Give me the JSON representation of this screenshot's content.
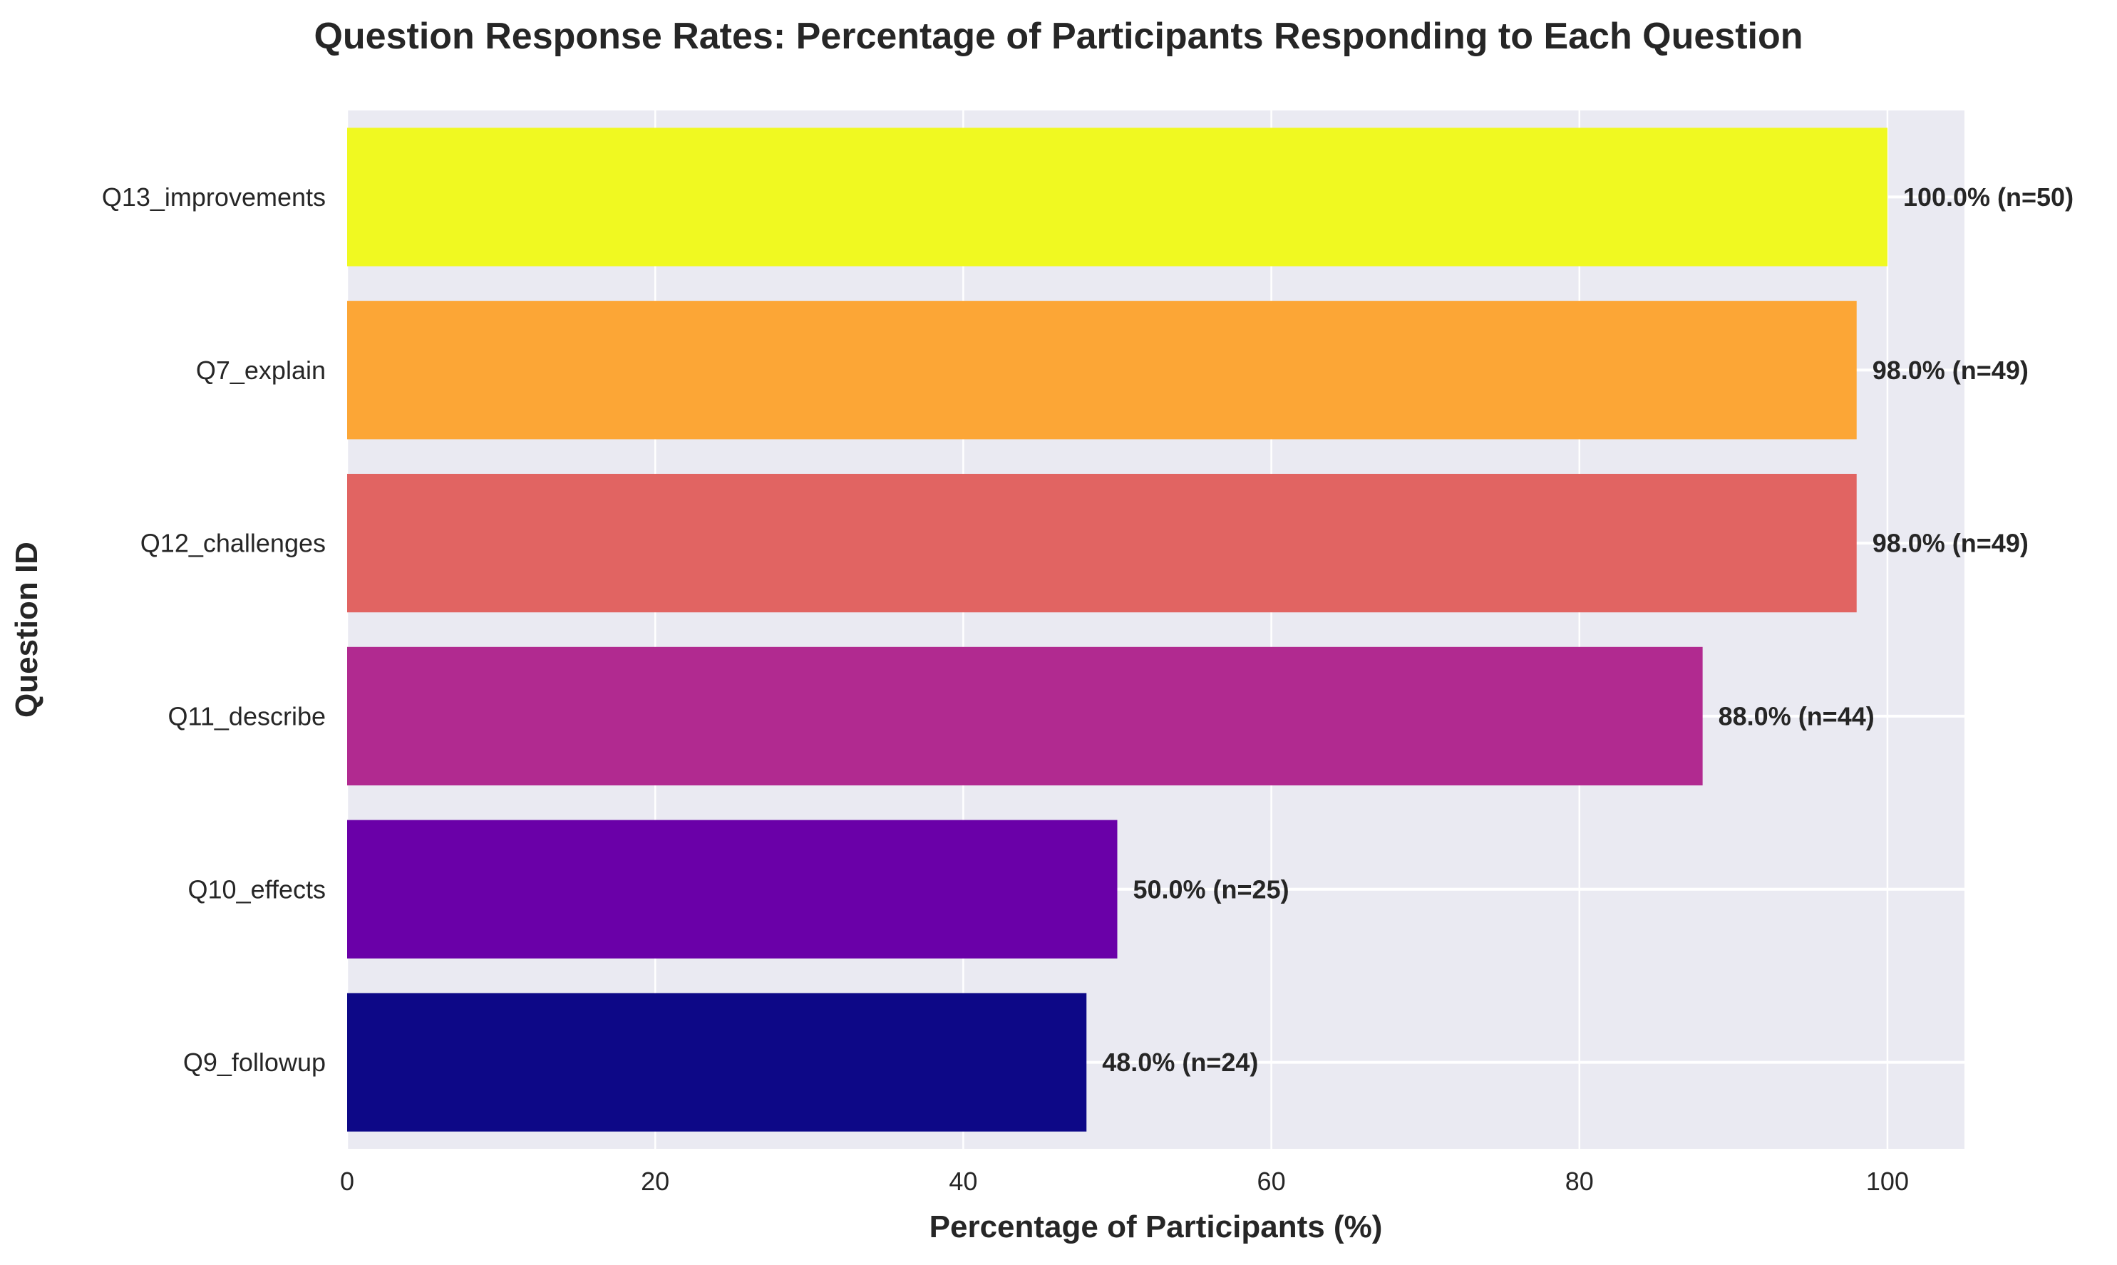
{
  "chart_data": {
    "type": "bar",
    "orientation": "horizontal",
    "title": "Question Response Rates: Percentage of Participants Responding to Each Question",
    "xlabel": "Percentage of Participants (%)",
    "ylabel": "Question ID",
    "xlim": [
      0,
      105
    ],
    "xticks": [
      0,
      20,
      40,
      60,
      80,
      100
    ],
    "grid": true,
    "categories": [
      "Q13_improvements",
      "Q7_explain",
      "Q12_challenges",
      "Q11_describe",
      "Q10_effects",
      "Q9_followup"
    ],
    "values": [
      100.0,
      98.0,
      98.0,
      88.0,
      50.0,
      48.0
    ],
    "counts": [
      50,
      49,
      49,
      44,
      25,
      24
    ],
    "bar_labels": [
      "100.0% (n=50)",
      "98.0% (n=49)",
      "98.0% (n=49)",
      "88.0% (n=44)",
      "50.0% (n=25)",
      "48.0% (n=24)"
    ],
    "colors": [
      "#f0f921",
      "#fca636",
      "#e16462",
      "#b12a90",
      "#6a00a8",
      "#0d0887"
    ],
    "background": "#eaeaf2"
  }
}
